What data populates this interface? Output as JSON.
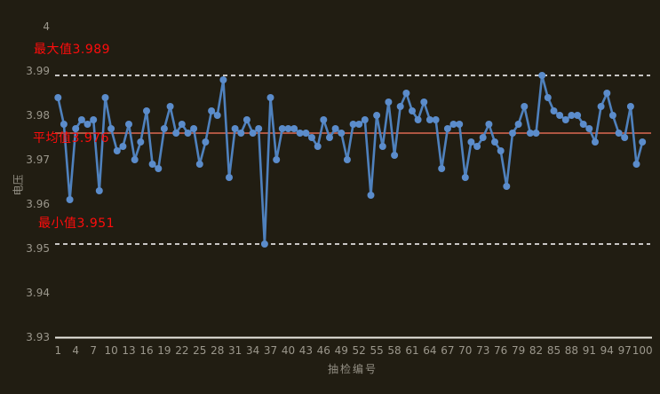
{
  "chart_data": {
    "type": "line",
    "title": "",
    "xlabel": "抽检编号",
    "ylabel": "电压",
    "ylim": [
      3.93,
      4.0
    ],
    "grid": "off",
    "legend": "none",
    "x_tick_labels": [
      1,
      4,
      7,
      10,
      13,
      16,
      19,
      22,
      25,
      28,
      31,
      34,
      37,
      40,
      43,
      46,
      49,
      52,
      55,
      58,
      61,
      64,
      67,
      70,
      73,
      76,
      79,
      82,
      85,
      88,
      91,
      94,
      97,
      100
    ],
    "y_tick_values": [
      4,
      3.99,
      3.98,
      3.97,
      3.96,
      3.95,
      3.94,
      3.93
    ],
    "y_tick_labels": [
      "4",
      "3.99",
      "3.98",
      "3.97",
      "3.96",
      "3.95",
      "3.94",
      "3.93"
    ],
    "x": "sample numbers 1 to 100",
    "series": [
      {
        "name": "voltage",
        "values": [
          3.984,
          3.978,
          3.961,
          3.977,
          3.979,
          3.978,
          3.979,
          3.963,
          3.984,
          3.977,
          3.972,
          3.973,
          3.978,
          3.97,
          3.974,
          3.981,
          3.969,
          3.968,
          3.977,
          3.982,
          3.976,
          3.978,
          3.976,
          3.977,
          3.969,
          3.974,
          3.981,
          3.98,
          3.988,
          3.966,
          3.977,
          3.976,
          3.979,
          3.976,
          3.977,
          3.951,
          3.984,
          3.97,
          3.977,
          3.977,
          3.977,
          3.976,
          3.976,
          3.975,
          3.973,
          3.979,
          3.975,
          3.977,
          3.976,
          3.97,
          3.978,
          3.978,
          3.979,
          3.962,
          3.98,
          3.973,
          3.983,
          3.971,
          3.982,
          3.985,
          3.981,
          3.979,
          3.983,
          3.979,
          3.979,
          3.968,
          3.977,
          3.978,
          3.978,
          3.966,
          3.974,
          3.973,
          3.975,
          3.978,
          3.974,
          3.972,
          3.964,
          3.976,
          3.978,
          3.982,
          3.976,
          3.976,
          3.989,
          3.984,
          3.981,
          3.98,
          3.979,
          3.98,
          3.98,
          3.978,
          3.977,
          3.974,
          3.982,
          3.985,
          3.98,
          3.976,
          3.975,
          3.982,
          3.969,
          3.974
        ]
      }
    ],
    "reference_lines": [
      {
        "id": "max",
        "label": "最大值3.989",
        "value": 3.989,
        "style": "dashed",
        "color": "#ffffff"
      },
      {
        "id": "avg",
        "label": "平均值3.976",
        "value": 3.976,
        "style": "solid",
        "color": "#dd6a52"
      },
      {
        "id": "min",
        "label": "最小值3.951",
        "value": 3.951,
        "style": "dashed",
        "color": "#ffffff"
      }
    ],
    "colors": {
      "background": "#211d12",
      "series_line": "#4f81bd",
      "marker_fill": "#5b8ccb",
      "annotation_text": "#ff0c0c",
      "average_line": "#dd6a52",
      "limit_line": "#ffffff",
      "axis_line": "#eceae3",
      "tick_label": "#9b978c"
    }
  }
}
